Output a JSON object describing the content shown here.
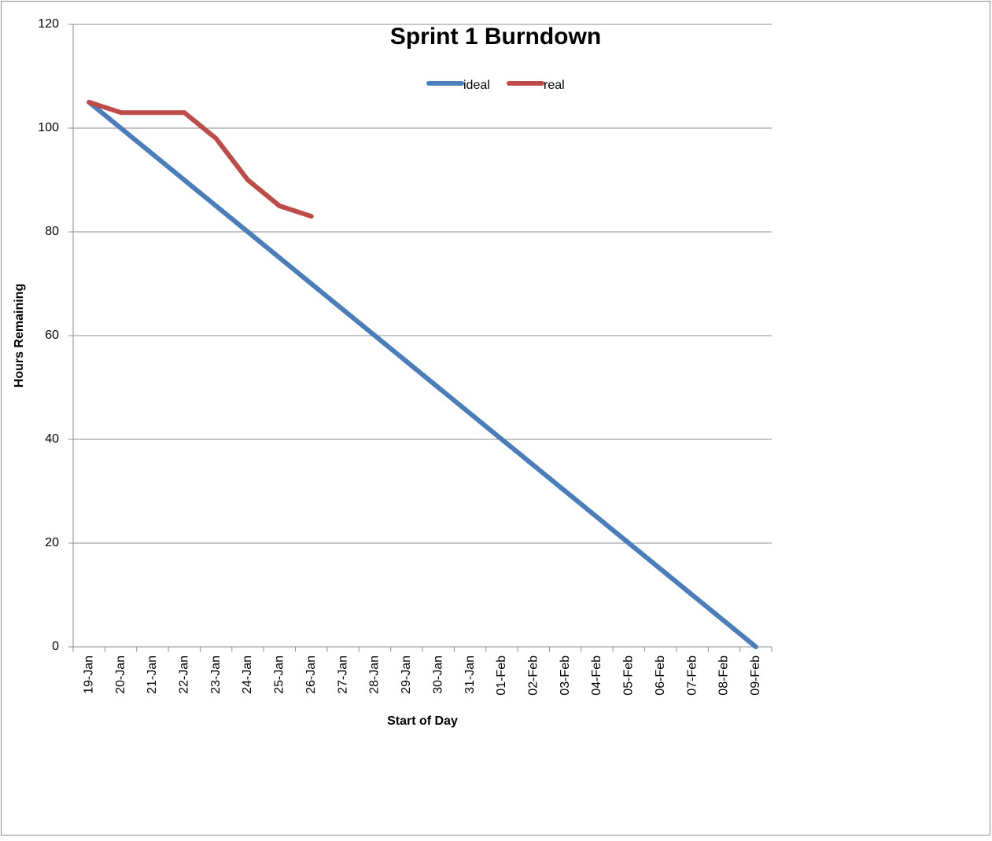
{
  "chart_data": {
    "type": "line",
    "title": "Sprint 1 Burndown",
    "x_label": "Start of Day",
    "y_label": "Hours Remaining",
    "categories": [
      "19-Jan",
      "20-Jan",
      "21-Jan",
      "22-Jan",
      "23-Jan",
      "24-Jan",
      "25-Jan",
      "26-Jan",
      "27-Jan",
      "28-Jan",
      "29-Jan",
      "30-Jan",
      "31-Jan",
      "01-Feb",
      "02-Feb",
      "03-Feb",
      "04-Feb",
      "05-Feb",
      "06-Feb",
      "07-Feb",
      "08-Feb",
      "09-Feb"
    ],
    "series": [
      {
        "name": "ideal",
        "color": "#4a7ebb",
        "values": [
          105,
          100,
          95,
          90,
          85,
          80,
          75,
          70,
          65,
          60,
          55,
          50,
          45,
          40,
          35,
          30,
          25,
          20,
          15,
          10,
          5,
          0
        ]
      },
      {
        "name": "real",
        "color": "#be4b48",
        "values": [
          105,
          103,
          103,
          103,
          98,
          90,
          85,
          83,
          null,
          null,
          null,
          null,
          null,
          null,
          null,
          null,
          null,
          null,
          null,
          null,
          null,
          null
        ]
      }
    ],
    "ylim": [
      0,
      120
    ],
    "yticks": [
      0,
      20,
      40,
      60,
      80,
      100,
      120
    ],
    "grid": true,
    "legend": "top"
  }
}
